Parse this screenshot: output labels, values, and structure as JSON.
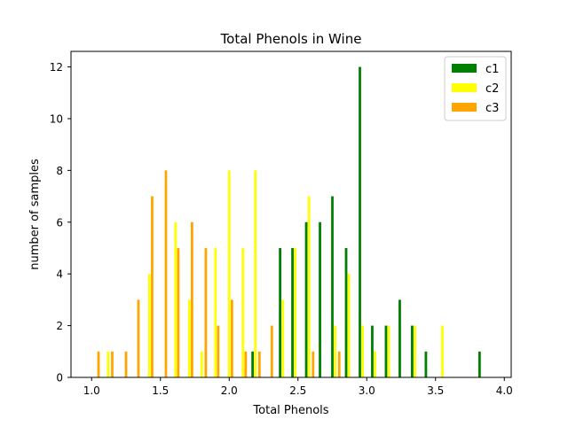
{
  "chart_data": {
    "type": "bar",
    "title": "Total Phenols in Wine",
    "xlabel": "Total Phenols",
    "ylabel": "number of samples",
    "xlim": [
      0.85,
      4.05
    ],
    "ylim": [
      0,
      12.6
    ],
    "xticks": [
      "1.0",
      "1.5",
      "2.0",
      "2.5",
      "3.0",
      "3.5",
      "4.0"
    ],
    "yticks": [
      "0",
      "2",
      "4",
      "6",
      "8",
      "10",
      "12"
    ],
    "legend_position": "top-right",
    "grid": false,
    "bar_width": 0.018,
    "series": [
      {
        "name": "c1",
        "color": "#008000",
        "points": [
          {
            "x": 2.17,
            "y": 1
          },
          {
            "x": 2.37,
            "y": 5
          },
          {
            "x": 2.46,
            "y": 5
          },
          {
            "x": 2.56,
            "y": 6
          },
          {
            "x": 2.66,
            "y": 6
          },
          {
            "x": 2.75,
            "y": 7
          },
          {
            "x": 2.85,
            "y": 5
          },
          {
            "x": 2.95,
            "y": 12
          },
          {
            "x": 3.04,
            "y": 2
          },
          {
            "x": 3.14,
            "y": 2
          },
          {
            "x": 3.24,
            "y": 3
          },
          {
            "x": 3.33,
            "y": 2
          },
          {
            "x": 3.43,
            "y": 1
          },
          {
            "x": 3.82,
            "y": 1
          }
        ]
      },
      {
        "name": "c2",
        "color": "#ffff00",
        "points": [
          {
            "x": 1.12,
            "y": 1
          },
          {
            "x": 1.42,
            "y": 4
          },
          {
            "x": 1.61,
            "y": 6
          },
          {
            "x": 1.71,
            "y": 3
          },
          {
            "x": 1.8,
            "y": 1
          },
          {
            "x": 1.9,
            "y": 5
          },
          {
            "x": 2.0,
            "y": 8
          },
          {
            "x": 2.1,
            "y": 5
          },
          {
            "x": 2.19,
            "y": 8
          },
          {
            "x": 2.39,
            "y": 3
          },
          {
            "x": 2.48,
            "y": 5
          },
          {
            "x": 2.58,
            "y": 7
          },
          {
            "x": 2.77,
            "y": 2
          },
          {
            "x": 2.87,
            "y": 4
          },
          {
            "x": 2.97,
            "y": 2
          },
          {
            "x": 3.06,
            "y": 1
          },
          {
            "x": 3.16,
            "y": 2
          },
          {
            "x": 3.35,
            "y": 2
          },
          {
            "x": 3.55,
            "y": 2
          }
        ]
      },
      {
        "name": "c3",
        "color": "#ffa500",
        "points": [
          {
            "x": 1.05,
            "y": 1
          },
          {
            "x": 1.15,
            "y": 1
          },
          {
            "x": 1.25,
            "y": 1
          },
          {
            "x": 1.34,
            "y": 3
          },
          {
            "x": 1.44,
            "y": 7
          },
          {
            "x": 1.54,
            "y": 8
          },
          {
            "x": 1.63,
            "y": 5
          },
          {
            "x": 1.73,
            "y": 6
          },
          {
            "x": 1.83,
            "y": 5
          },
          {
            "x": 1.92,
            "y": 2
          },
          {
            "x": 2.02,
            "y": 3
          },
          {
            "x": 2.12,
            "y": 1
          },
          {
            "x": 2.22,
            "y": 1
          },
          {
            "x": 2.31,
            "y": 2
          },
          {
            "x": 2.61,
            "y": 1
          },
          {
            "x": 2.8,
            "y": 1
          }
        ]
      }
    ]
  }
}
